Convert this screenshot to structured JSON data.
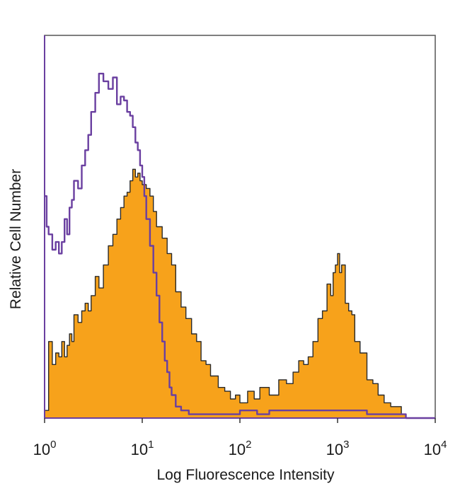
{
  "chart_data": {
    "type": "area",
    "xlabel": "Log Fluorescence Intensity",
    "ylabel": "Relative Cell Number",
    "x_scale": "log",
    "xlim": [
      1,
      10000
    ],
    "ylim": [
      0,
      100
    ],
    "x_ticks": [
      {
        "base": "10",
        "exp": "0",
        "value": 1
      },
      {
        "base": "10",
        "exp": "1",
        "value": 10
      },
      {
        "base": "10",
        "exp": "2",
        "value": 100
      },
      {
        "base": "10",
        "exp": "3",
        "value": 1000
      },
      {
        "base": "10",
        "exp": "4",
        "value": 10000
      }
    ],
    "grid": false,
    "legend": "none",
    "series": [
      {
        "style": "filled",
        "fill_color": "#f7a21b",
        "line_color": "#2a2a2a",
        "x": [
          1.0,
          1.1,
          1.2,
          1.3,
          1.4,
          1.5,
          1.6,
          1.7,
          1.8,
          1.9,
          2.0,
          2.2,
          2.4,
          2.6,
          2.8,
          3.0,
          3.3,
          3.6,
          4.0,
          4.5,
          5.0,
          5.5,
          6.0,
          6.5,
          7.0,
          7.5,
          8.0,
          8.5,
          9.0,
          9.5,
          10.0,
          11.0,
          12.0,
          13.0,
          14.0,
          15.0,
          16.0,
          18.0,
          20.0,
          22.0,
          25.0,
          28.0,
          32.0,
          36.0,
          40.0,
          45.0,
          50.0,
          60.0,
          70.0,
          80.0,
          90.0,
          100.0,
          120.0,
          140.0,
          160.0,
          200.0,
          250.0,
          300.0,
          350.0,
          400.0,
          450.0,
          500.0,
          560.0,
          630.0,
          700.0,
          780.0,
          850.0,
          900.0,
          950.0,
          1000.0,
          1050.0,
          1100.0,
          1200.0,
          1300.0,
          1400.0,
          1500.0,
          1700.0,
          2000.0,
          2300.0,
          2600.0,
          3000.0,
          3500.0,
          4000.0,
          4500.0,
          5000.0
        ],
        "values": [
          2,
          20,
          14,
          17,
          16,
          20,
          16,
          19,
          22,
          20,
          27,
          25,
          28,
          30,
          28,
          32,
          37,
          34,
          40,
          45,
          48,
          52,
          55,
          58,
          59,
          62,
          65,
          63,
          64,
          62,
          61,
          60,
          58,
          54,
          50,
          50,
          47,
          43,
          40,
          33,
          29,
          26,
          22,
          20,
          15,
          14,
          11,
          8,
          7,
          5,
          6,
          4,
          7,
          5,
          8,
          6,
          10,
          9,
          12,
          15,
          14,
          16,
          20,
          26,
          28,
          35,
          32,
          38,
          40,
          43,
          38,
          40,
          30,
          28,
          27,
          20,
          17,
          10,
          9,
          6,
          4,
          3,
          3,
          1,
          0
        ]
      },
      {
        "style": "line",
        "line_color": "#6a3fa0",
        "x": [
          1.0,
          1.05,
          1.1,
          1.2,
          1.3,
          1.4,
          1.5,
          1.6,
          1.7,
          1.8,
          1.9,
          2.0,
          2.2,
          2.4,
          2.6,
          2.8,
          3.0,
          3.3,
          3.6,
          4.0,
          4.5,
          5.0,
          5.5,
          6.0,
          6.5,
          7.0,
          7.5,
          8.0,
          8.5,
          9.0,
          9.5,
          10.0,
          10.5,
          11.0,
          12.0,
          13.0,
          14.0,
          15.0,
          16.0,
          17.0,
          18.0,
          19.0,
          20.0,
          22.0,
          25.0,
          30.0,
          40.0,
          60.0,
          100.0,
          150.0,
          200.0,
          300.0,
          500.0,
          1000.0,
          2000.0,
          5000.0,
          10000.0
        ],
        "values": [
          58,
          50,
          48,
          44,
          46,
          43,
          46,
          52,
          48,
          55,
          57,
          62,
          60,
          66,
          70,
          74,
          80,
          85,
          90,
          88,
          86,
          89,
          82,
          84,
          83,
          80,
          79,
          76,
          72,
          70,
          66,
          63,
          58,
          52,
          45,
          38,
          32,
          25,
          20,
          15,
          12,
          8,
          6,
          3,
          2,
          1,
          1,
          1,
          2,
          1,
          2,
          2,
          2,
          2,
          1,
          0,
          0
        ]
      }
    ]
  }
}
